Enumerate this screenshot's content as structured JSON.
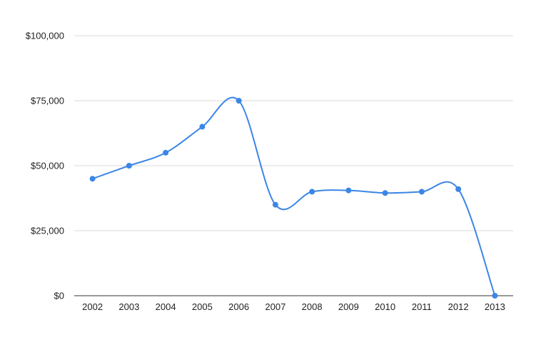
{
  "chart_data": {
    "type": "line",
    "title": "",
    "xlabel": "",
    "ylabel": "",
    "categories": [
      "2002",
      "2003",
      "2004",
      "2005",
      "2006",
      "2007",
      "2008",
      "2009",
      "2010",
      "2011",
      "2012",
      "2013"
    ],
    "series": [
      {
        "values": [
          45000,
          50000,
          55000,
          65000,
          75000,
          35000,
          40000,
          40500,
          39500,
          40000,
          41000,
          0
        ],
        "color": "#3c86e6"
      }
    ],
    "ylim": [
      0,
      100000
    ],
    "yticks": [
      0,
      25000,
      50000,
      75000,
      100000
    ],
    "ytick_labels": [
      "$0",
      "$25,000",
      "$50,000",
      "$75,000",
      "$100,000"
    ],
    "grid": true,
    "smooth": true,
    "legend": "none"
  }
}
